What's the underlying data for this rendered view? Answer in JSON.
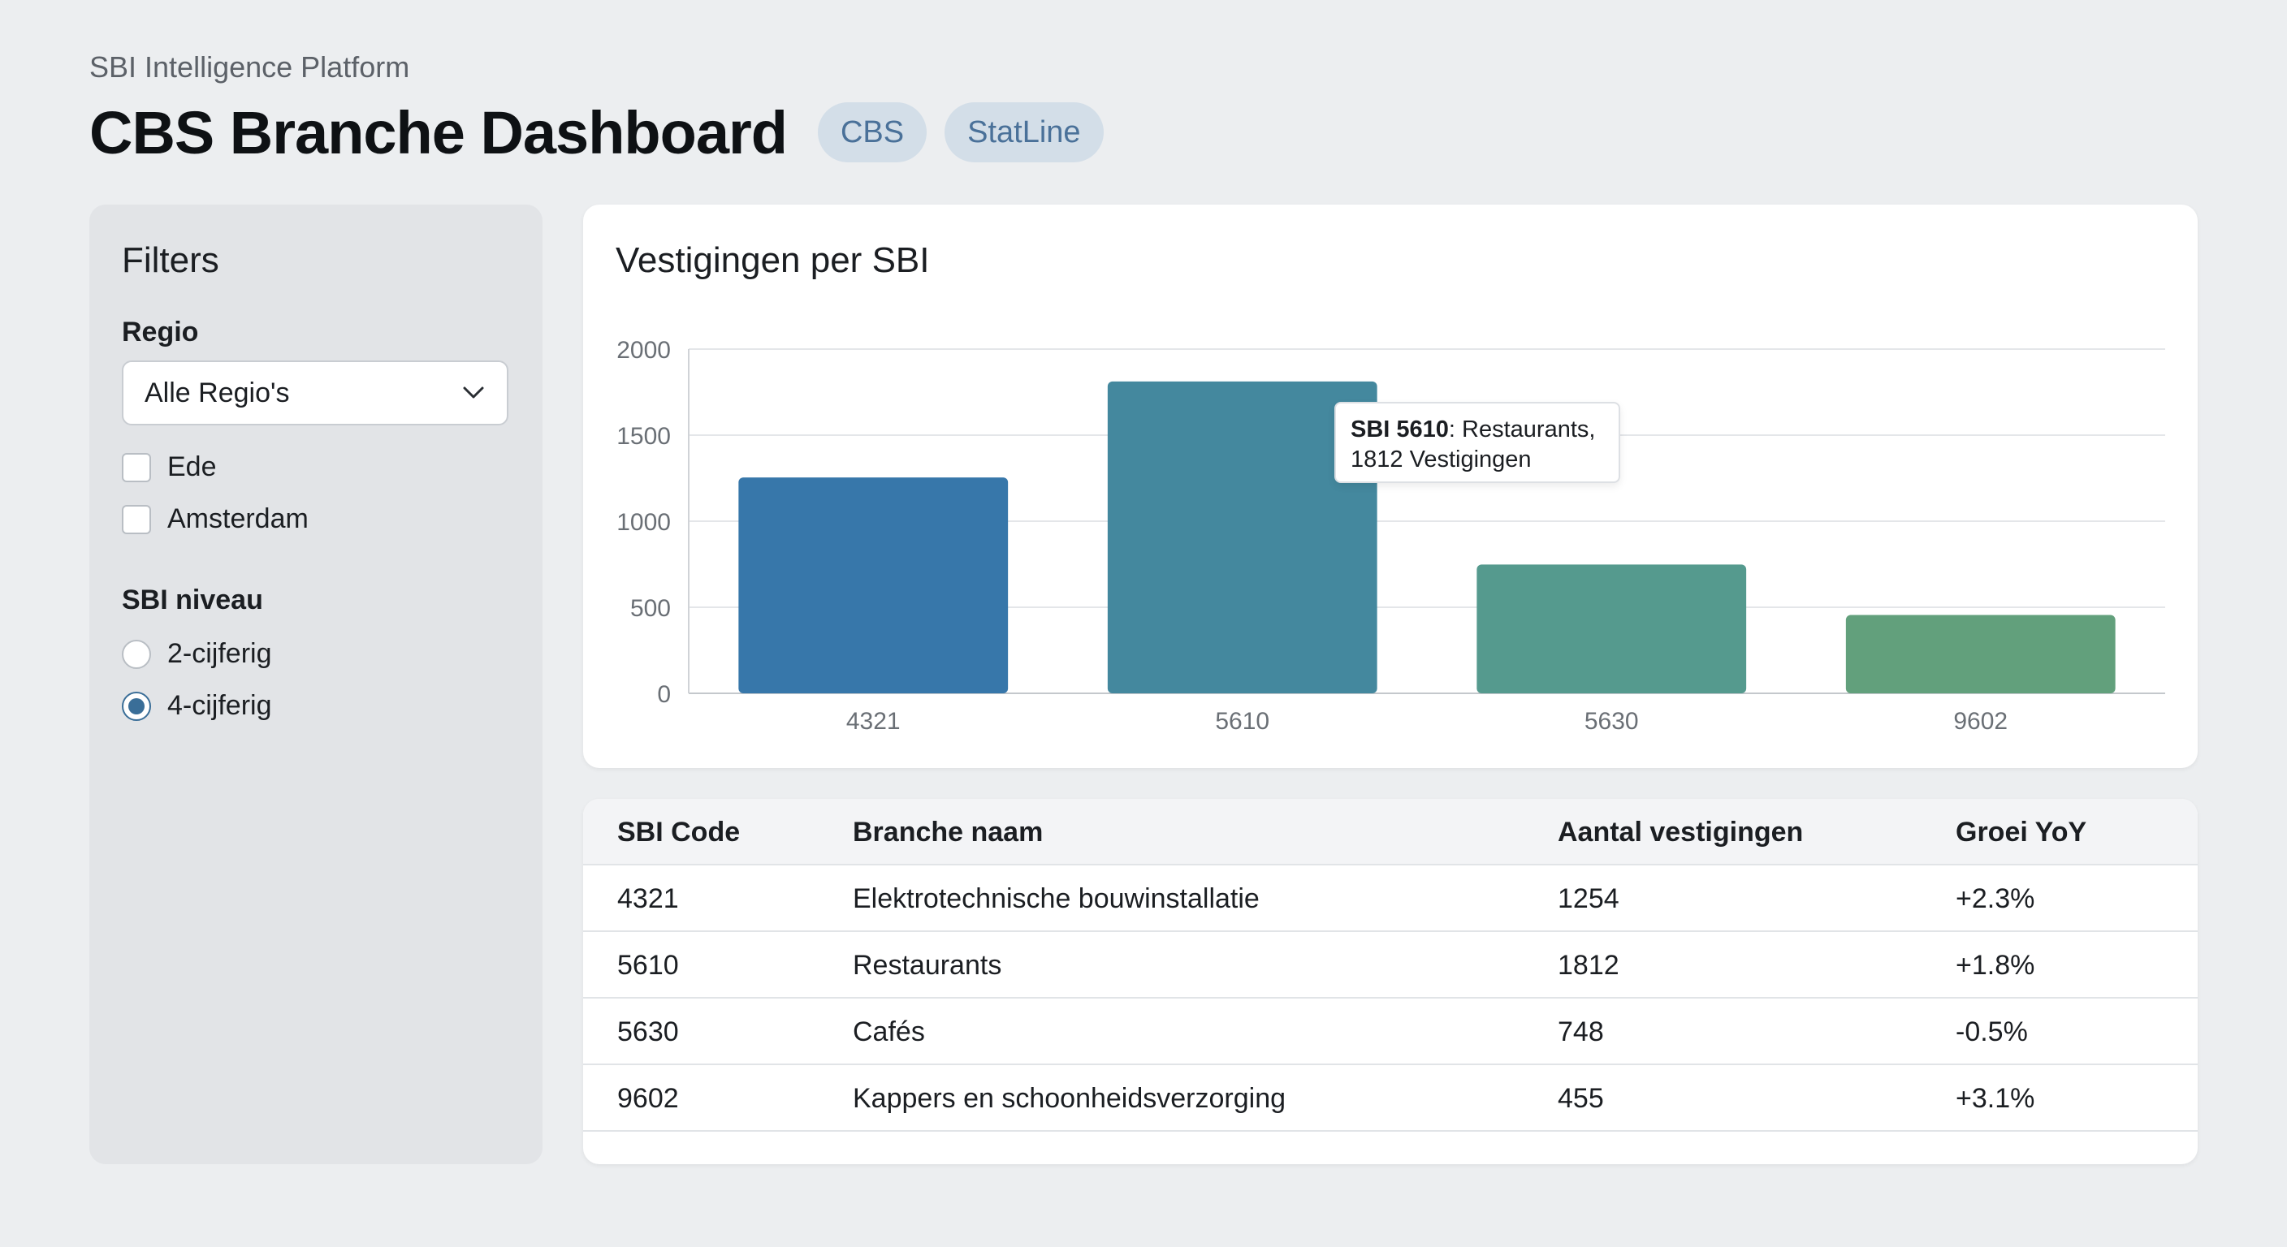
{
  "header": {
    "platform": "SBI Intelligence Platform",
    "title": "CBS Branche Dashboard",
    "badges": [
      "CBS",
      "StatLine"
    ]
  },
  "sidebar": {
    "title": "Filters",
    "regio_label": "Regio",
    "regio_select": "Alle Regio's",
    "regio_options": [
      {
        "label": "Ede",
        "checked": false
      },
      {
        "label": "Amsterdam",
        "checked": false
      }
    ],
    "niveau_label": "SBI niveau",
    "niveau_options": [
      {
        "label": "2-cijferig",
        "selected": false
      },
      {
        "label": "4-cijferig",
        "selected": true
      }
    ]
  },
  "chart": {
    "title": "Vestigingen per SBI",
    "tooltip": {
      "code": "SBI 5610",
      "line1": ": Restaurants,",
      "line2": "1812 Vestigingen"
    }
  },
  "chart_data": {
    "type": "bar",
    "title": "Vestigingen per SBI",
    "categories": [
      "4321",
      "5610",
      "5630",
      "9602"
    ],
    "values": [
      1254,
      1812,
      748,
      455
    ],
    "colors": [
      "#3777aa",
      "#44889e",
      "#559a8e",
      "#62a07c"
    ],
    "ylim": [
      0,
      2000
    ],
    "yticks": [
      0,
      500,
      1000,
      1500,
      2000
    ],
    "grid": true
  },
  "table": {
    "columns": [
      "SBI Code",
      "Branche naam",
      "Aantal vestigingen",
      "Groei YoY"
    ],
    "rows": [
      [
        "4321",
        "Elektrotechnische bouwinstallatie",
        "1254",
        "+2.3%"
      ],
      [
        "5610",
        "Restaurants",
        "1812",
        "+1.8%"
      ],
      [
        "5630",
        "Cafés",
        "748",
        "-0.5%"
      ],
      [
        "9602",
        "Kappers en schoonheidsverzorging",
        "455",
        "+3.1%"
      ]
    ]
  },
  "colors": {
    "accent": "#3a6e98",
    "badge_bg": "#d3dee8",
    "badge_text": "#4a7199"
  }
}
